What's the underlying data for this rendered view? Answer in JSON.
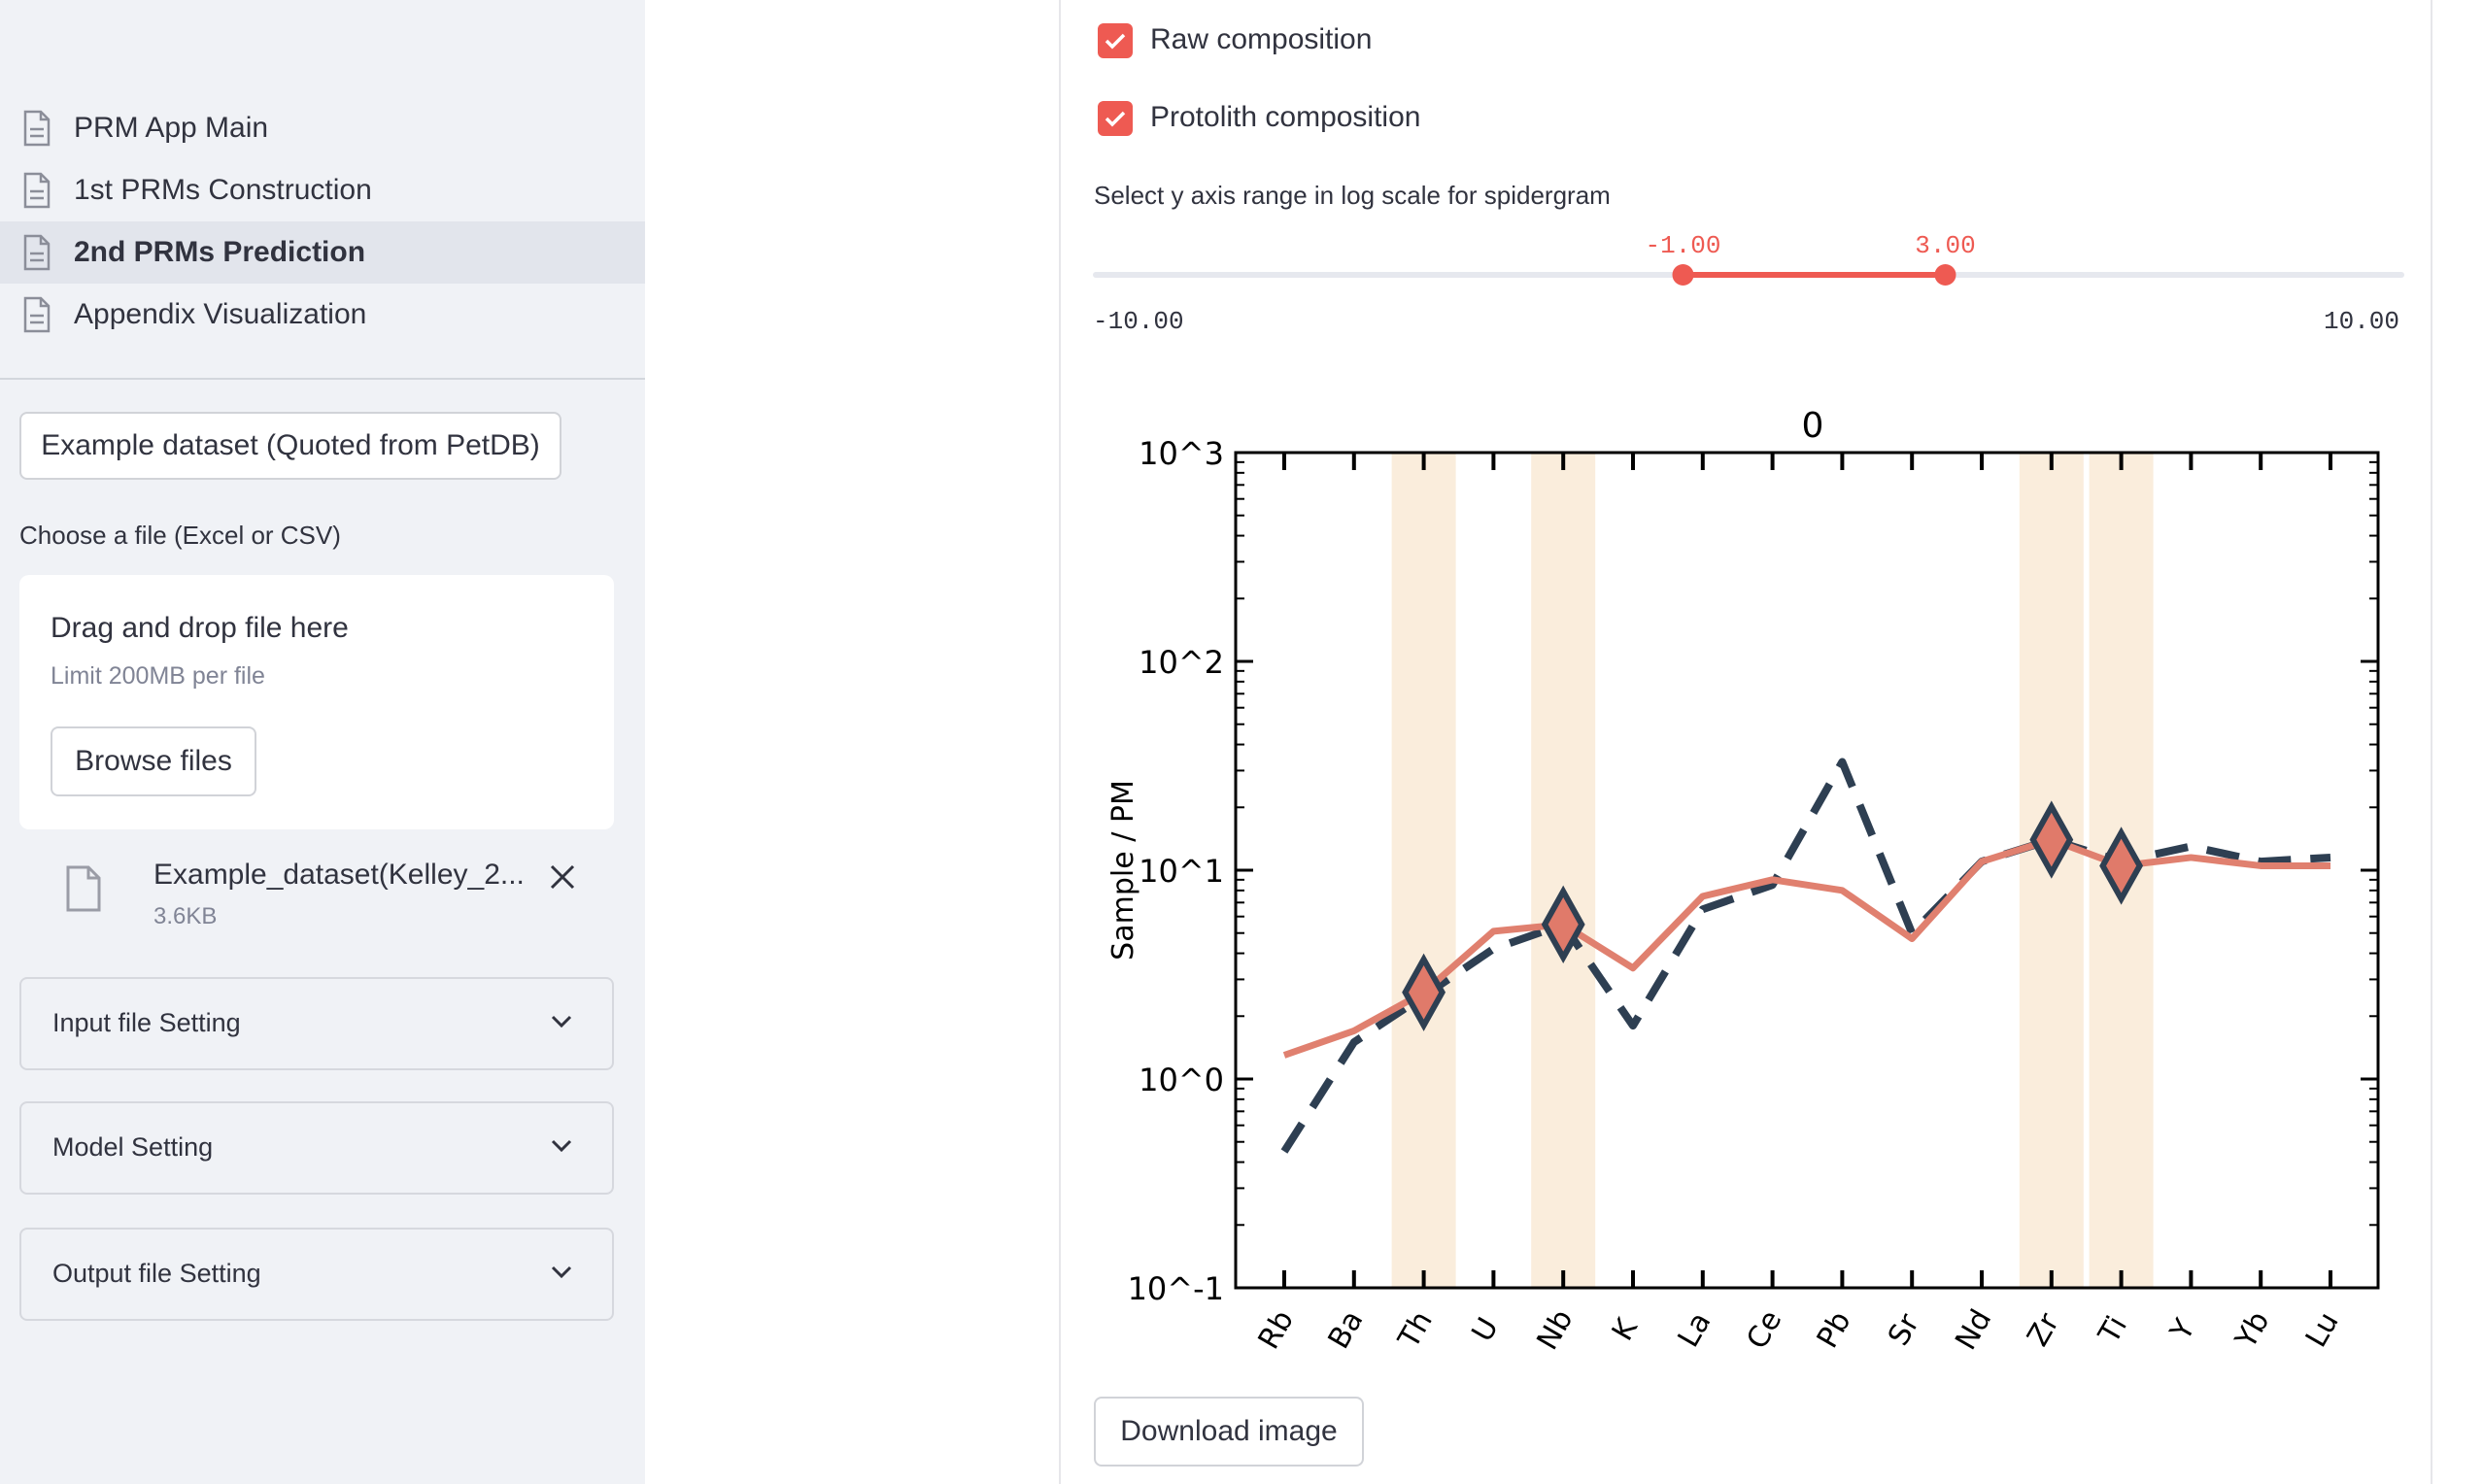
{
  "sidebar": {
    "nav": [
      {
        "label": "PRM App Main",
        "active": false
      },
      {
        "label": "1st PRMs Construction",
        "active": false
      },
      {
        "label": "2nd PRMs Prediction",
        "active": true
      },
      {
        "label": "Appendix Visualization",
        "active": false
      }
    ],
    "example_button": "Example dataset (Quoted from PetDB)",
    "file_label": "Choose a file (Excel or CSV)",
    "dropzone": {
      "title": "Drag and drop file here",
      "limit": "Limit 200MB per file",
      "browse": "Browse files"
    },
    "file": {
      "name": "Example_dataset(Kelley_2...",
      "size": "3.6KB"
    },
    "expanders": [
      "Input file Setting",
      "Model Setting",
      "Output file Setting"
    ]
  },
  "main": {
    "checkboxes": [
      {
        "label": "Raw composition",
        "checked": true
      },
      {
        "label": "Protolith composition",
        "checked": true
      }
    ],
    "slider": {
      "label": "Select y axis range in log scale for spidergram",
      "min": -10,
      "max": 10,
      "low": -1,
      "high": 3,
      "min_text": "-10.00",
      "max_text": "10.00",
      "low_text": "-1.00",
      "high_text": "3.00"
    },
    "download_button": "Download image"
  },
  "chart_data": {
    "type": "line",
    "title": "0",
    "ylabel": "Sample / PM",
    "yscale": "log",
    "ylim": [
      0.1,
      1000
    ],
    "y_ticks": [
      "10^-1",
      "10^0",
      "10^1",
      "10^2",
      "10^3"
    ],
    "categories": [
      "Rb",
      "Ba",
      "Th",
      "U",
      "Nb",
      "K",
      "La",
      "Ce",
      "Pb",
      "Sr",
      "Nd",
      "Zr",
      "Ti",
      "Y",
      "Yb",
      "Lu"
    ],
    "highlight_categories": [
      "Th",
      "Nb",
      "Zr",
      "Ti"
    ],
    "series": [
      {
        "style": "dashed",
        "color": "#2e3f52",
        "values": [
          0.45,
          1.5,
          2.5,
          4.2,
          5.5,
          1.8,
          6.5,
          8.5,
          33,
          5,
          11,
          14,
          11,
          13,
          11,
          11.5
        ]
      },
      {
        "style": "solid",
        "color": "#e0806f",
        "values": [
          1.3,
          1.7,
          2.6,
          5.1,
          5.5,
          3.4,
          7.5,
          9,
          8,
          4.7,
          11,
          14,
          10.5,
          11.5,
          10.5,
          10.5
        ]
      }
    ],
    "markers": {
      "shape": "diamond",
      "fill": "#e07a6a",
      "edge": "#2e3f52",
      "categories": [
        "Th",
        "Nb",
        "Zr",
        "Ti"
      ],
      "values": [
        2.6,
        5.5,
        14,
        10.5
      ]
    }
  }
}
